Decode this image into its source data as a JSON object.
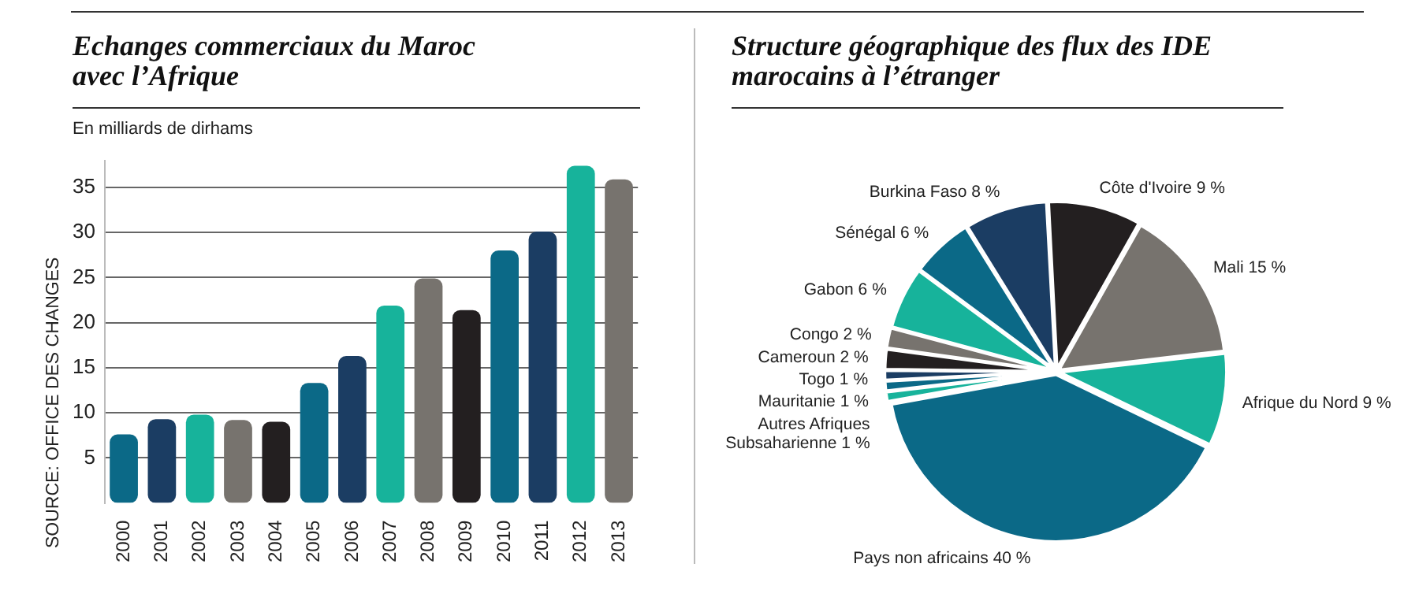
{
  "chart_data": [
    {
      "type": "bar",
      "title": "Echanges commerciaux du Maroc avec l’Afrique",
      "ylabel": "En milliards de dirhams",
      "categories": [
        "2000",
        "2001",
        "2002",
        "2003",
        "2004",
        "2005",
        "2006",
        "2007",
        "2008",
        "2009",
        "2010",
        "2011",
        "2012",
        "2013"
      ],
      "values": [
        7.6,
        9.3,
        9.8,
        9.2,
        9.0,
        13.3,
        16.3,
        21.9,
        24.9,
        21.4,
        28.0,
        30.1,
        37.4,
        35.9
      ],
      "colors": [
        "#0b6987",
        "#1b3d63",
        "#17b39b",
        "#77736e",
        "#231f20",
        "#0b6987",
        "#1b3d63",
        "#17b39b",
        "#77736e",
        "#231f20",
        "#0b6987",
        "#1b3d63",
        "#17b39b",
        "#77736e"
      ],
      "ylim": [
        0,
        38
      ],
      "yticks": [
        5,
        10,
        15,
        20,
        25,
        30,
        35
      ],
      "grid": "y",
      "legend": false,
      "annotations": [
        "SOURCE: OFFICE DES CHANGES"
      ]
    },
    {
      "type": "pie",
      "title": "Structure géographique des flux des IDE marocains à l’étranger",
      "categories": [
        "Côte d'Ivoire",
        "Mali",
        "Afrique du Nord",
        "Pays non africains",
        "Autres Afriques Subsaharienne",
        "Mauritanie",
        "Togo",
        "Cameroun",
        "Congo",
        "Gabon",
        "Sénégal",
        "Burkina Faso"
      ],
      "values": [
        9,
        15,
        9,
        40,
        1,
        1,
        1,
        2,
        2,
        6,
        6,
        8
      ],
      "value_labels": [
        "9 %",
        "15 %",
        "9 %",
        "40 %",
        "1 %",
        "1 %",
        "1 %",
        "2 %",
        "2 %",
        "6 %",
        "6 %",
        "8 %"
      ],
      "colors": [
        "#231f20",
        "#77736e",
        "#17b39b",
        "#0b6987",
        "#17b39b",
        "#0b6987",
        "#1b3d63",
        "#231f20",
        "#77736e",
        "#17b39b",
        "#0b6987",
        "#1b3d63"
      ],
      "legend": false
    }
  ]
}
